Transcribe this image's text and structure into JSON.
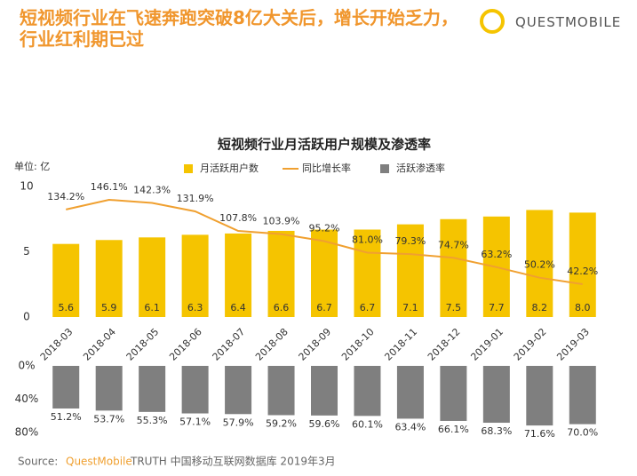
{
  "header": {
    "title": "短视频行业在飞速奔跑突破8亿大关后，增长开始乏力，行业红利期已过",
    "logo": "QUESTMOBILE"
  },
  "source": {
    "prefix": "Source:",
    "brand": "QuestMobile",
    "text": "TRUTH 中国移动互联网数据库 2019年3月"
  },
  "chart_data": {
    "type": "bar",
    "title": "短视频行业月活跃用户规模及渗透率",
    "ylabel": "单位: 亿",
    "categories": [
      "2018-03",
      "2018-04",
      "2018-05",
      "2018-06",
      "2018-07",
      "2018-08",
      "2018-09",
      "2018-10",
      "2018-11",
      "2018-12",
      "2019-01",
      "2019-02",
      "2019-03"
    ],
    "ylim": [
      0,
      10
    ],
    "yticks": [
      0,
      5,
      10
    ],
    "y2lim": [
      0,
      80
    ],
    "y2_inverted": true,
    "y2ticks": [
      {
        "value": 0,
        "label": "0%"
      },
      {
        "value": 40,
        "label": "40%"
      },
      {
        "value": 80,
        "label": "80%"
      }
    ],
    "series": [
      {
        "name": "月活跃用户数",
        "color": "#f5c400",
        "values": [
          5.6,
          5.9,
          6.1,
          6.3,
          6.4,
          6.6,
          6.7,
          6.7,
          7.1,
          7.5,
          7.7,
          8.2,
          8.0
        ],
        "value_labels": [
          "5.6",
          "5.9",
          "6.1",
          "6.3",
          "6.4",
          "6.6",
          "6.7",
          "6.7",
          "7.1",
          "7.5",
          "7.7",
          "8.2",
          "8.0"
        ]
      },
      {
        "name": "同比增长率",
        "type": "line",
        "color": "#f0a030",
        "values": [
          134.2,
          146.1,
          142.3,
          131.9,
          107.8,
          103.9,
          95.2,
          81.0,
          79.3,
          74.7,
          63.2,
          50.2,
          42.2
        ],
        "value_labels": [
          "134.2%",
          "146.1%",
          "142.3%",
          "131.9%",
          "107.8%",
          "103.9%",
          "95.2%",
          "81.0%",
          "79.3%",
          "74.7%",
          "63.2%",
          "50.2%",
          "42.2%"
        ]
      },
      {
        "name": "活跃渗透率",
        "axis": "y2",
        "color": "#7f7f7f",
        "values": [
          51.2,
          53.7,
          55.3,
          57.1,
          57.9,
          59.2,
          59.6,
          60.1,
          63.4,
          66.1,
          68.3,
          71.6,
          70.0
        ],
        "value_labels": [
          "51.2%",
          "53.7%",
          "55.3%",
          "57.1%",
          "57.9%",
          "59.2%",
          "59.6%",
          "60.1%",
          "63.4%",
          "66.1%",
          "68.3%",
          "71.6%",
          "70.0%"
        ]
      }
    ]
  }
}
